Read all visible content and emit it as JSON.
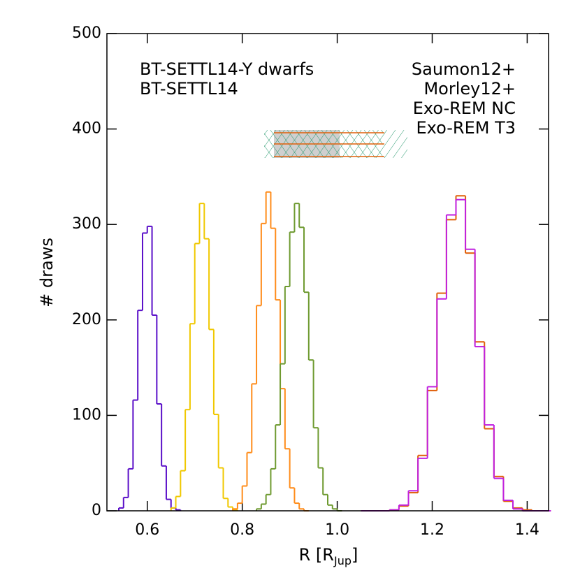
{
  "chart_data": {
    "type": "histogram",
    "xlabel": [
      "R [R",
      "Jup",
      "]"
    ],
    "ylabel": "# draws",
    "xlim": [
      0.515,
      1.445
    ],
    "ylim": [
      0,
      500
    ],
    "xticks": [
      0.6,
      0.8,
      {
        "value": 1,
        "label": "1.0"
      },
      1.2,
      1.4
    ],
    "yticks": [
      0,
      100,
      200,
      300,
      400,
      500
    ],
    "series": [
      {
        "name": "BT-SETTL14-Y dwarfs",
        "color": "#5a0fc8",
        "legend_column": "left",
        "bins": [
          0.54,
          0.55,
          0.56,
          0.57,
          0.58,
          0.59,
          0.6,
          0.61,
          0.62,
          0.63,
          0.64,
          0.65,
          0.66,
          0.67
        ],
        "values": [
          3,
          14,
          44,
          116,
          210,
          291,
          298,
          205,
          112,
          47,
          12,
          3,
          1
        ]
      },
      {
        "name": "BT-SETTL14",
        "color": "#f0c800",
        "legend_column": "left",
        "bins": [
          0.65,
          0.66,
          0.67,
          0.68,
          0.69,
          0.7,
          0.71,
          0.72,
          0.73,
          0.74,
          0.75,
          0.76,
          0.77,
          0.78,
          0.79
        ],
        "values": [
          3,
          15,
          42,
          106,
          196,
          280,
          322,
          285,
          190,
          101,
          45,
          13,
          4,
          1
        ]
      },
      {
        "name": "Saumon12+",
        "color": "#ff8c1a",
        "legend_column": "right",
        "bins": [
          0.78,
          0.79,
          0.8,
          0.81,
          0.82,
          0.83,
          0.84,
          0.85,
          0.86,
          0.87,
          0.88,
          0.89,
          0.9,
          0.91,
          0.92,
          0.93,
          0.94
        ],
        "values": [
          2,
          8,
          26,
          61,
          133,
          215,
          301,
          334,
          296,
          221,
          128,
          65,
          24,
          8,
          2,
          0
        ]
      },
      {
        "name": "Morley12+",
        "color": "#6e9a30",
        "legend_column": "right",
        "bins": [
          0.83,
          0.84,
          0.85,
          0.86,
          0.87,
          0.88,
          0.89,
          0.9,
          0.91,
          0.92,
          0.93,
          0.94,
          0.95,
          0.96,
          0.97,
          0.98,
          0.99,
          1.0,
          1.01
        ],
        "values": [
          2,
          7,
          17,
          44,
          90,
          154,
          235,
          292,
          322,
          297,
          229,
          158,
          87,
          45,
          17,
          6,
          2,
          0
        ]
      },
      {
        "name": "Exo-REM NC",
        "color": "#e0600a",
        "legend_column": "right",
        "bins": [
          1.05,
          1.07,
          1.09,
          1.11,
          1.13,
          1.15,
          1.17,
          1.19,
          1.21,
          1.23,
          1.25,
          1.27,
          1.29,
          1.31,
          1.33,
          1.35,
          1.37,
          1.39,
          1.41,
          1.43,
          1.45
        ],
        "values": [
          0,
          0,
          0,
          1,
          5,
          19,
          58,
          126,
          228,
          305,
          330,
          270,
          177,
          86,
          36,
          10,
          3,
          1,
          0,
          0
        ]
      },
      {
        "name": "Exo-REM T3",
        "color": "#c020e0",
        "legend_column": "right",
        "bins": [
          1.05,
          1.07,
          1.09,
          1.11,
          1.13,
          1.15,
          1.17,
          1.19,
          1.21,
          1.23,
          1.25,
          1.27,
          1.29,
          1.31,
          1.33,
          1.35,
          1.37,
          1.39,
          1.41,
          1.43,
          1.45
        ],
        "values": [
          0,
          0,
          0,
          1,
          6,
          21,
          55,
          130,
          222,
          310,
          326,
          274,
          172,
          90,
          34,
          11,
          2,
          0,
          0,
          0
        ]
      }
    ]
  }
}
